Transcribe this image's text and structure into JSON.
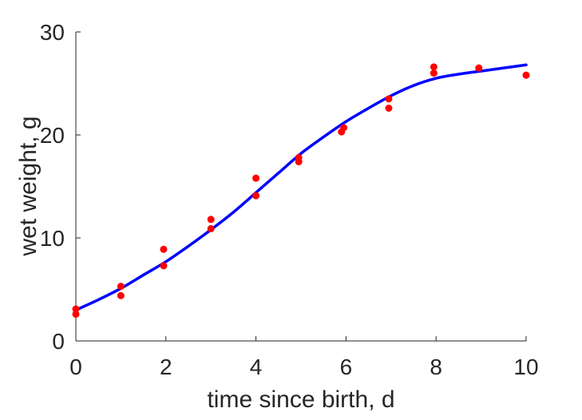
{
  "chart_data": {
    "type": "scatter",
    "title": "",
    "xlabel": "time since birth, d",
    "ylabel": "wet weight, g",
    "xlim": [
      0,
      10
    ],
    "ylim": [
      0,
      30
    ],
    "xticks": [
      0,
      2,
      4,
      6,
      8,
      10
    ],
    "yticks": [
      0,
      10,
      20,
      30
    ],
    "grid": false,
    "legend": "none",
    "series": [
      {
        "kind": "points",
        "color": "#ff0000",
        "x": [
          0.0,
          0.0,
          1.0,
          1.0,
          1.95,
          1.95,
          3.0,
          3.0,
          4.0,
          4.0,
          4.95,
          4.95,
          5.9,
          5.95,
          6.95,
          6.95,
          7.95,
          7.95,
          8.95,
          10.0
        ],
        "y": [
          3.1,
          2.6,
          5.3,
          4.4,
          8.9,
          7.3,
          11.8,
          10.9,
          15.8,
          14.1,
          17.8,
          17.4,
          20.3,
          20.7,
          23.5,
          22.6,
          26.6,
          26.0,
          26.5,
          25.8
        ]
      },
      {
        "kind": "line",
        "color": "#0000ff",
        "x": [
          0,
          0.5,
          1,
          1.5,
          2,
          2.5,
          3,
          3.5,
          4,
          4.5,
          5,
          5.5,
          6,
          6.5,
          7,
          7.5,
          8,
          8.5,
          9,
          9.5,
          10
        ],
        "y": [
          3.0,
          4.0,
          5.1,
          6.4,
          7.7,
          9.2,
          10.8,
          12.5,
          14.4,
          16.3,
          18.2,
          19.8,
          21.3,
          22.6,
          23.8,
          24.8,
          25.5,
          25.9,
          26.2,
          26.5,
          26.8
        ]
      }
    ]
  }
}
